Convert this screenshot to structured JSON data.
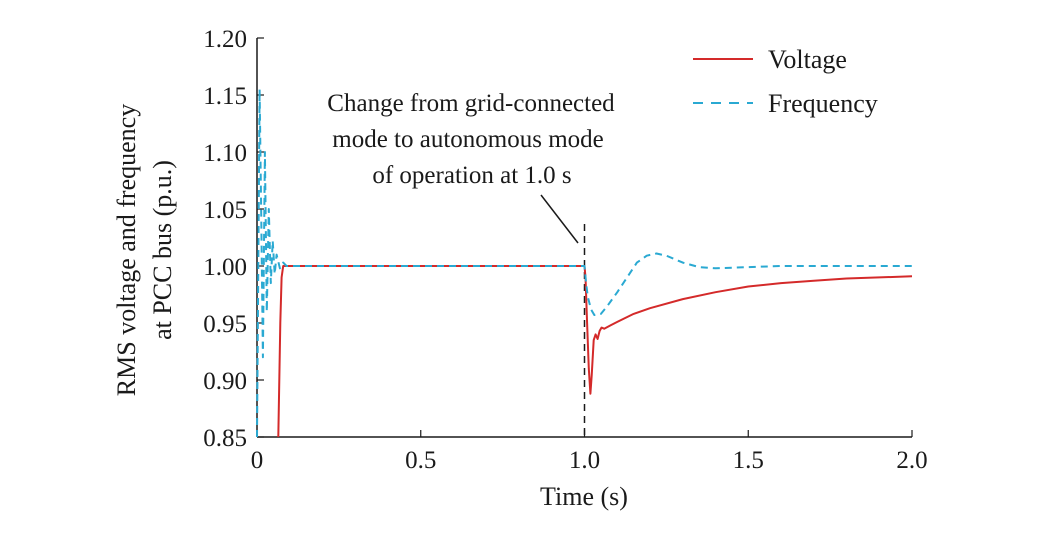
{
  "chart_data": {
    "type": "line",
    "title": "",
    "xlabel": "Time (s)",
    "ylabel_lines": [
      "RMS voltage and frequency",
      "at PCC bus (p.u.)"
    ],
    "xlim": [
      0,
      2.0
    ],
    "ylim": [
      0.85,
      1.2
    ],
    "x_ticks": [
      0,
      0.5,
      1.0,
      1.5,
      2.0
    ],
    "x_tick_labels": [
      "0",
      "0.5",
      "1.0",
      "1.5",
      "2.0"
    ],
    "y_ticks": [
      0.85,
      0.9,
      0.95,
      1.0,
      1.05,
      1.1,
      1.15,
      1.2
    ],
    "y_tick_labels": [
      "0.85",
      "0.90",
      "0.95",
      "1.00",
      "1.05",
      "1.10",
      "1.15",
      "1.20"
    ],
    "grid": false,
    "legend_position": "top-right",
    "annotation": {
      "lines": [
        "Change from grid-connected",
        "mode to autonomous mode",
        "of operation at 1.0 s"
      ],
      "x": 1.0
    },
    "series": [
      {
        "name": "Voltage",
        "color": "#d42a2a",
        "dash": "solid",
        "points": [
          [
            0.065,
            0.85
          ],
          [
            0.068,
            0.9
          ],
          [
            0.071,
            0.95
          ],
          [
            0.075,
            0.99
          ],
          [
            0.08,
            1.0
          ],
          [
            0.2,
            1.0
          ],
          [
            0.5,
            1.0
          ],
          [
            0.8,
            1.0
          ],
          [
            1.0,
            1.0
          ],
          [
            1.003,
            0.99
          ],
          [
            1.008,
            0.95
          ],
          [
            1.013,
            0.91
          ],
          [
            1.018,
            0.888
          ],
          [
            1.022,
            0.904
          ],
          [
            1.028,
            0.935
          ],
          [
            1.034,
            0.94
          ],
          [
            1.04,
            0.936
          ],
          [
            1.046,
            0.943
          ],
          [
            1.052,
            0.946
          ],
          [
            1.06,
            0.945
          ],
          [
            1.08,
            0.948
          ],
          [
            1.1,
            0.951
          ],
          [
            1.15,
            0.958
          ],
          [
            1.2,
            0.963
          ],
          [
            1.3,
            0.971
          ],
          [
            1.4,
            0.977
          ],
          [
            1.5,
            0.982
          ],
          [
            1.6,
            0.985
          ],
          [
            1.7,
            0.987
          ],
          [
            1.8,
            0.989
          ],
          [
            1.9,
            0.99
          ],
          [
            2.0,
            0.991
          ]
        ]
      },
      {
        "name": "Frequency",
        "color": "#2aa9d2",
        "dash": "dashed",
        "points": [
          [
            0.0,
            0.85
          ],
          [
            0.004,
            1.0
          ],
          [
            0.008,
            1.155
          ],
          [
            0.013,
            1.04
          ],
          [
            0.018,
            0.92
          ],
          [
            0.024,
            1.1
          ],
          [
            0.03,
            0.96
          ],
          [
            0.036,
            1.05
          ],
          [
            0.042,
            0.985
          ],
          [
            0.048,
            1.022
          ],
          [
            0.054,
            0.993
          ],
          [
            0.06,
            1.01
          ],
          [
            0.07,
            0.998
          ],
          [
            0.08,
            1.003
          ],
          [
            0.09,
            1.0
          ],
          [
            0.2,
            1.0
          ],
          [
            0.5,
            1.0
          ],
          [
            0.8,
            1.0
          ],
          [
            1.0,
            1.0
          ],
          [
            1.005,
            0.985
          ],
          [
            1.01,
            0.973
          ],
          [
            1.02,
            0.962
          ],
          [
            1.03,
            0.957
          ],
          [
            1.05,
            0.958
          ],
          [
            1.07,
            0.965
          ],
          [
            1.1,
            0.977
          ],
          [
            1.13,
            0.99
          ],
          [
            1.16,
            1.003
          ],
          [
            1.19,
            1.009
          ],
          [
            1.22,
            1.011
          ],
          [
            1.25,
            1.009
          ],
          [
            1.3,
            1.003
          ],
          [
            1.35,
            0.999
          ],
          [
            1.4,
            0.998
          ],
          [
            1.5,
            0.999
          ],
          [
            1.6,
            1.0
          ],
          [
            2.0,
            1.0
          ]
        ]
      }
    ]
  }
}
